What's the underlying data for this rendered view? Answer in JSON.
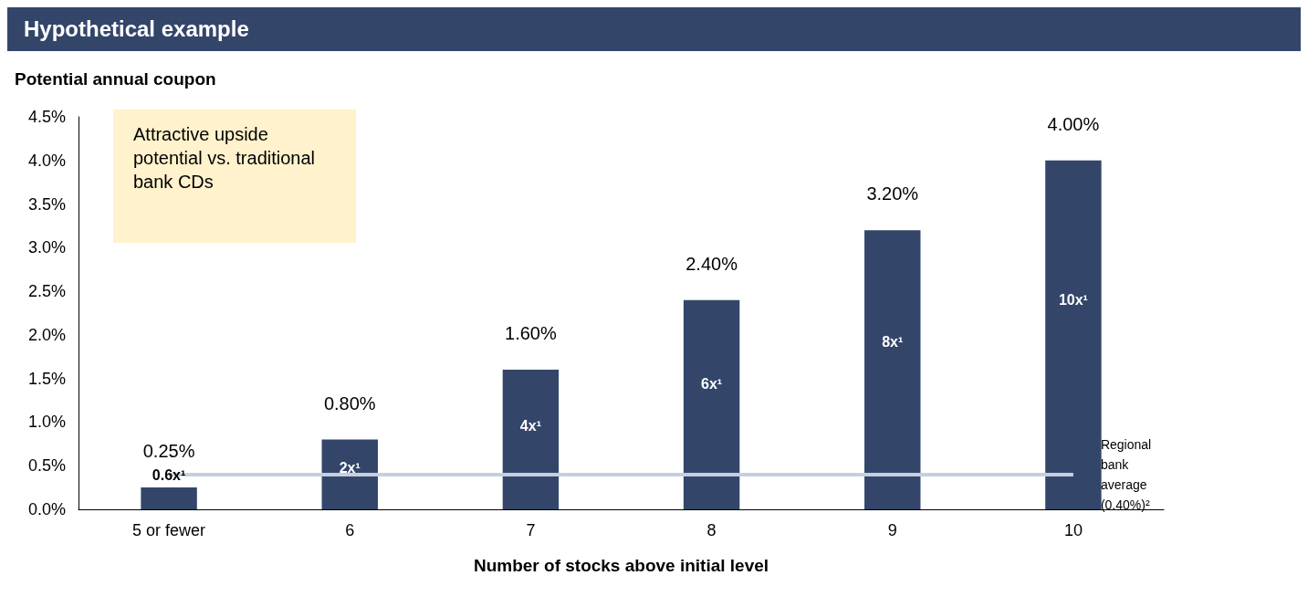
{
  "chart_data": {
    "type": "bar",
    "title": "Hypothetical example",
    "ylabel": "Potential annual coupon",
    "xlabel": "Number of stocks above initial level",
    "categories": [
      "5 or fewer",
      "6",
      "7",
      "8",
      "9",
      "10"
    ],
    "values": [
      0.25,
      0.8,
      1.6,
      2.4,
      3.2,
      4.0
    ],
    "value_labels": [
      "0.25%",
      "0.80%",
      "1.60%",
      "2.40%",
      "3.20%",
      "4.00%"
    ],
    "color": "#33466a",
    "ylim": [
      0,
      4.5
    ],
    "yticks": [
      {
        "value": 0,
        "label": "0.0%"
      },
      {
        "value": 0.5,
        "label": "0.5%"
      },
      {
        "value": 1,
        "label": "1.0%"
      },
      {
        "value": 1.5,
        "label": "1.5%"
      },
      {
        "value": 2,
        "label": "2.0%"
      },
      {
        "value": 2.5,
        "label": "2.5%"
      },
      {
        "value": 3,
        "label": "3.0%"
      },
      {
        "value": 3.5,
        "label": "3.5%"
      },
      {
        "value": 4,
        "label": "4.0%"
      },
      {
        "value": 4.5,
        "label": "4.5%"
      }
    ],
    "grid": false,
    "ref_lines": [
      {
        "axis": "y",
        "value": 0.4,
        "label": "Regional bank average (0.40%)²",
        "color": "#c5cfe0"
      }
    ],
    "annotations": [
      "Attractive upside potential vs. traditional bank CDs",
      "0.6x¹",
      "2x¹",
      "4x¹",
      "6x¹",
      "8x¹",
      "10x¹"
    ]
  }
}
